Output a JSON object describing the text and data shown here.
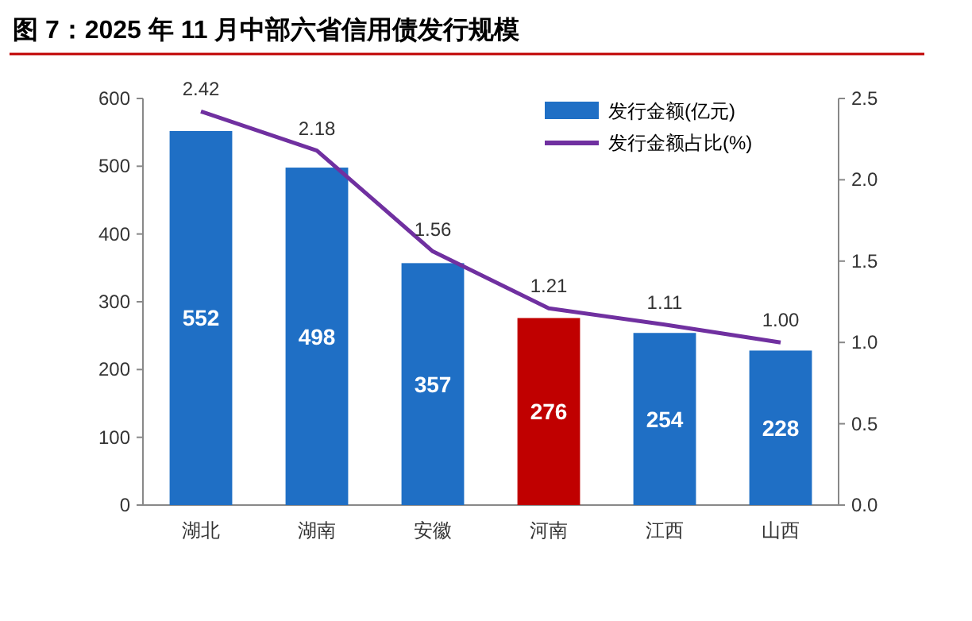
{
  "chart_data": {
    "type": "bar",
    "title": "图 7：2025 年 11 月中部六省信用债发行规模",
    "categories": [
      "湖北",
      "湖南",
      "安徽",
      "河南",
      "江西",
      "山西"
    ],
    "series": [
      {
        "name": "发行金额(亿元)",
        "color": "#1f6fc5",
        "colors": [
          "#1f6fc5",
          "#1f6fc5",
          "#1f6fc5",
          "#c00000",
          "#1f6fc5",
          "#1f6fc5"
        ],
        "values": [
          552,
          498,
          357,
          276,
          254,
          228
        ]
      },
      {
        "name": "发行金额占比(%)",
        "type": "line",
        "axis": "y2",
        "color": "#7030a0",
        "values": [
          2.42,
          2.18,
          1.56,
          1.21,
          1.11,
          1.0
        ],
        "value_labels": [
          "2.42",
          "2.18",
          "1.56",
          "1.21",
          "1.11",
          "1.00"
        ]
      }
    ],
    "ylim": [
      0,
      600
    ],
    "yticks": [
      0,
      100,
      200,
      300,
      400,
      500,
      600
    ],
    "y2lim": [
      0,
      2.5
    ],
    "y2ticks": [
      {
        "value": 0,
        "label": "0.0"
      },
      {
        "value": 0.5,
        "label": "0.5"
      },
      {
        "value": 1,
        "label": "1.0"
      },
      {
        "value": 1.5,
        "label": "1.5"
      },
      {
        "value": 2,
        "label": "2.0"
      },
      {
        "value": 2.5,
        "label": "2.5"
      }
    ],
    "legend": "top right",
    "data_labels": true
  }
}
